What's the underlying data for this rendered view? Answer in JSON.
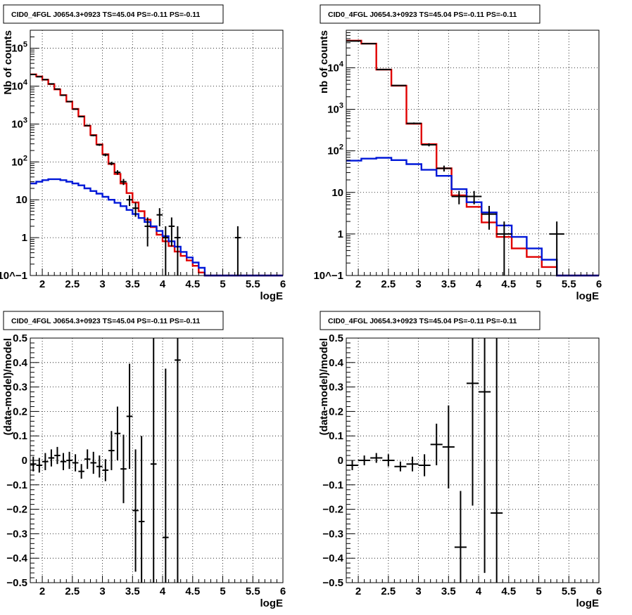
{
  "colors": {
    "data": "#000000",
    "total_model": "#e00000",
    "background_model": "#0018d8",
    "grid": "#000000",
    "frame": "#000000"
  },
  "chart_data": [
    {
      "type": "line",
      "title": "CID0_4FGL J0654.3+0923 TS=45.04 PS=-0.11 PS=-0.11",
      "xlabel": "logE",
      "ylabel": "Nb of counts",
      "log_y": true,
      "grid": true,
      "xlim": [
        1.8,
        6
      ],
      "ylim": [
        0.1,
        300000
      ],
      "x_ticks": [
        "2",
        "2.5",
        "3",
        "3.5",
        "4",
        "4.5",
        "5",
        "5.5",
        "6"
      ],
      "y_ticks": [
        "10^-1",
        "1",
        "10",
        "10^2",
        "10^3",
        "10^4",
        "10^5"
      ],
      "bin_width": 0.1,
      "series": [
        {
          "role": "total_model",
          "style": "step",
          "bin_lo": 1.8,
          "values": [
            20500,
            18000,
            14800,
            11300,
            8200,
            5800,
            3900,
            2500,
            1600,
            900,
            510,
            290,
            160,
            88,
            48,
            27,
            15,
            8.5,
            5,
            3,
            1.9,
            1.2,
            0.8,
            0.6,
            0.43,
            0.33,
            0.25,
            0.18,
            0.12,
            0.1,
            0.1,
            0.1,
            0.1,
            0.1,
            0.1,
            0.1,
            0.1,
            0.1,
            0.1,
            0.1,
            0.1,
            0.1
          ]
        },
        {
          "role": "background_model",
          "style": "step",
          "bin_lo": 1.8,
          "values": [
            27,
            30,
            33,
            35,
            35,
            33,
            30,
            27,
            24,
            20,
            17,
            14.5,
            12,
            10,
            8.3,
            6.8,
            5.4,
            4.2,
            3.3,
            2.6,
            2,
            1.5,
            1.1,
            0.8,
            0.58,
            0.42,
            0.3,
            0.22,
            0.16,
            0.1,
            0.1,
            0.1,
            0.1,
            0.1,
            0.1,
            0.1,
            0.1,
            0.1,
            0.1,
            0.1,
            0.1,
            0.1
          ]
        },
        {
          "role": "data",
          "style": "points",
          "x_half_width": 0.05,
          "points": [
            {
              "x": 1.85,
              "y": 20300
            },
            {
              "x": 1.95,
              "y": 17700
            },
            {
              "x": 2.05,
              "y": 14900
            },
            {
              "x": 2.15,
              "y": 11500
            },
            {
              "x": 2.25,
              "y": 8400
            },
            {
              "x": 2.35,
              "y": 5750
            },
            {
              "x": 2.45,
              "y": 3920
            },
            {
              "x": 2.55,
              "y": 2470
            },
            {
              "x": 2.65,
              "y": 1570
            },
            {
              "x": 2.75,
              "y": 910
            },
            {
              "x": 2.85,
              "y": 500
            },
            {
              "x": 2.95,
              "y": 282
            },
            {
              "x": 3.05,
              "y": 153
            },
            {
              "x": 3.15,
              "y": 91
            },
            {
              "x": 3.25,
              "y": 53
            },
            {
              "x": 3.35,
              "y": 30
            },
            {
              "x": 3.45,
              "y": 10
            },
            {
              "x": 3.55,
              "y": 6
            },
            {
              "x": 3.75,
              "y": 2
            },
            {
              "x": 3.95,
              "y": 4
            },
            {
              "x": 4.05,
              "y": 1
            },
            {
              "x": 4.15,
              "y": 2
            },
            {
              "x": 4.25,
              "y": 1
            },
            {
              "x": 5.25,
              "y": 1
            }
          ]
        }
      ]
    },
    {
      "type": "line",
      "title": "CID0_4FGL J0654.3+0923 TS=45.04 PS=-0.11 PS=-0.11",
      "xlabel": "logE",
      "ylabel": "nb of counts",
      "log_y": true,
      "grid": true,
      "xlim": [
        1.8,
        6
      ],
      "ylim": [
        0.1,
        80000
      ],
      "x_ticks": [
        "2",
        "2.5",
        "3",
        "3.5",
        "4",
        "4.5",
        "5",
        "5.5",
        "6"
      ],
      "y_ticks": [
        "10^-1",
        "1",
        "10",
        "10^2",
        "10^3",
        "10^4"
      ],
      "bin_width": 0.25,
      "series": [
        {
          "role": "total_model",
          "style": "step",
          "bin_lo": 1.8,
          "values": [
            45000,
            38000,
            9000,
            3700,
            450,
            145,
            38,
            8.5,
            4.5,
            1.9,
            0.85,
            0.45,
            0.28,
            0.16,
            0.1,
            0.1,
            0.1
          ]
        },
        {
          "role": "background_model",
          "style": "step",
          "bin_lo": 1.8,
          "values": [
            58,
            65,
            68,
            60,
            48,
            35,
            25,
            12,
            5.8,
            3.3,
            1.6,
            0.85,
            0.45,
            0.24,
            0.1,
            0.1,
            0.1
          ]
        },
        {
          "role": "data",
          "style": "points",
          "x_half_width": 0.125,
          "points": [
            {
              "x": 1.925,
              "y": 44000
            },
            {
              "x": 2.175,
              "y": 38000
            },
            {
              "x": 2.425,
              "y": 9100
            },
            {
              "x": 2.675,
              "y": 3750
            },
            {
              "x": 2.925,
              "y": 460
            },
            {
              "x": 3.175,
              "y": 140
            },
            {
              "x": 3.425,
              "y": 38
            },
            {
              "x": 3.675,
              "y": 8
            },
            {
              "x": 3.925,
              "y": 8
            },
            {
              "x": 4.175,
              "y": 3
            },
            {
              "x": 4.425,
              "y": 1
            },
            {
              "x": 5.3,
              "y": 1
            }
          ]
        }
      ]
    },
    {
      "type": "scatter",
      "title": "CID0_4FGL J0654.3+0923 TS=45.04 PS=-0.11 PS=-0.11",
      "xlabel": "logE",
      "ylabel": "(data-model)/model",
      "grid": true,
      "xlim": [
        1.8,
        6
      ],
      "ylim": [
        -0.5,
        0.5
      ],
      "x_ticks": [
        "2",
        "2.5",
        "3",
        "3.5",
        "4",
        "4.5",
        "5",
        "5.5",
        "6"
      ],
      "y_ticks": [
        "-0.5",
        "-0.4",
        "-0.3",
        "-0.2",
        "-0.1",
        "0",
        "0.1",
        "0.2",
        "0.3",
        "0.4",
        "0.5"
      ],
      "series": [
        {
          "role": "data",
          "x_half_width": 0.05,
          "points": [
            {
              "x": 1.85,
              "y": -0.015,
              "err": 0.03
            },
            {
              "x": 1.95,
              "y": -0.02,
              "err": 0.03
            },
            {
              "x": 2.05,
              "y": -0.005,
              "err": 0.035
            },
            {
              "x": 2.15,
              "y": 0.01,
              "err": 0.035
            },
            {
              "x": 2.25,
              "y": 0.02,
              "err": 0.035
            },
            {
              "x": 2.35,
              "y": -0.005,
              "err": 0.035
            },
            {
              "x": 2.45,
              "y": 0.0,
              "err": 0.035
            },
            {
              "x": 2.55,
              "y": -0.01,
              "err": 0.035
            },
            {
              "x": 2.65,
              "y": -0.045,
              "err": 0.03
            },
            {
              "x": 2.75,
              "y": 0.005,
              "err": 0.04
            },
            {
              "x": 2.85,
              "y": -0.01,
              "err": 0.045
            },
            {
              "x": 2.95,
              "y": -0.025,
              "err": 0.045
            },
            {
              "x": 3.05,
              "y": -0.04,
              "err": 0.045
            },
            {
              "x": 3.15,
              "y": 0.04,
              "err": 0.08
            },
            {
              "x": 3.25,
              "y": 0.11,
              "err": 0.11
            },
            {
              "x": 3.35,
              "y": -0.035,
              "err": 0.14
            },
            {
              "x": 3.45,
              "y": 0.18,
              "err": 0.215
            },
            {
              "x": 3.55,
              "y": -0.205,
              "err": 0.25
            },
            {
              "x": 3.65,
              "y": -0.25,
              "err": 0.35
            },
            {
              "x": 3.85,
              "y": -0.015,
              "err": 0.9
            },
            {
              "x": 4.05,
              "y": -0.315,
              "err": 0.69
            },
            {
              "x": 4.25,
              "y": 0.41,
              "err": 1.2
            }
          ]
        }
      ]
    },
    {
      "type": "scatter",
      "title": "CID0_4FGL J0654.3+0923 TS=45.04 PS=-0.11 PS=-0.11",
      "xlabel": "logE",
      "ylabel": "(data-model)/model",
      "grid": true,
      "xlim": [
        1.8,
        6
      ],
      "ylim": [
        -0.5,
        0.5
      ],
      "x_ticks": [
        "2",
        "2.5",
        "3",
        "3.5",
        "4",
        "4.5",
        "5",
        "5.5",
        "6"
      ],
      "y_ticks": [
        "-0.5",
        "-0.4",
        "-0.3",
        "-0.2",
        "-0.1",
        "0",
        "0.1",
        "0.2",
        "0.3",
        "0.4",
        "0.5"
      ],
      "series": [
        {
          "role": "data",
          "x_half_width": 0.1,
          "points": [
            {
              "x": 1.9,
              "y": -0.02,
              "err": 0.02
            },
            {
              "x": 2.1,
              "y": 0.0,
              "err": 0.02
            },
            {
              "x": 2.3,
              "y": 0.01,
              "err": 0.02
            },
            {
              "x": 2.5,
              "y": 0.0,
              "err": 0.025
            },
            {
              "x": 2.7,
              "y": -0.025,
              "err": 0.02
            },
            {
              "x": 2.9,
              "y": -0.015,
              "err": 0.03
            },
            {
              "x": 3.1,
              "y": -0.02,
              "err": 0.045
            },
            {
              "x": 3.3,
              "y": 0.065,
              "err": 0.085
            },
            {
              "x": 3.5,
              "y": 0.055,
              "err": 0.17
            },
            {
              "x": 3.7,
              "y": -0.355,
              "err": 0.23
            },
            {
              "x": 3.9,
              "y": 0.315,
              "err": 0.5
            },
            {
              "x": 4.1,
              "y": 0.28,
              "err": 0.74
            },
            {
              "x": 4.3,
              "y": -0.215,
              "err": 1.0
            }
          ]
        }
      ]
    }
  ]
}
